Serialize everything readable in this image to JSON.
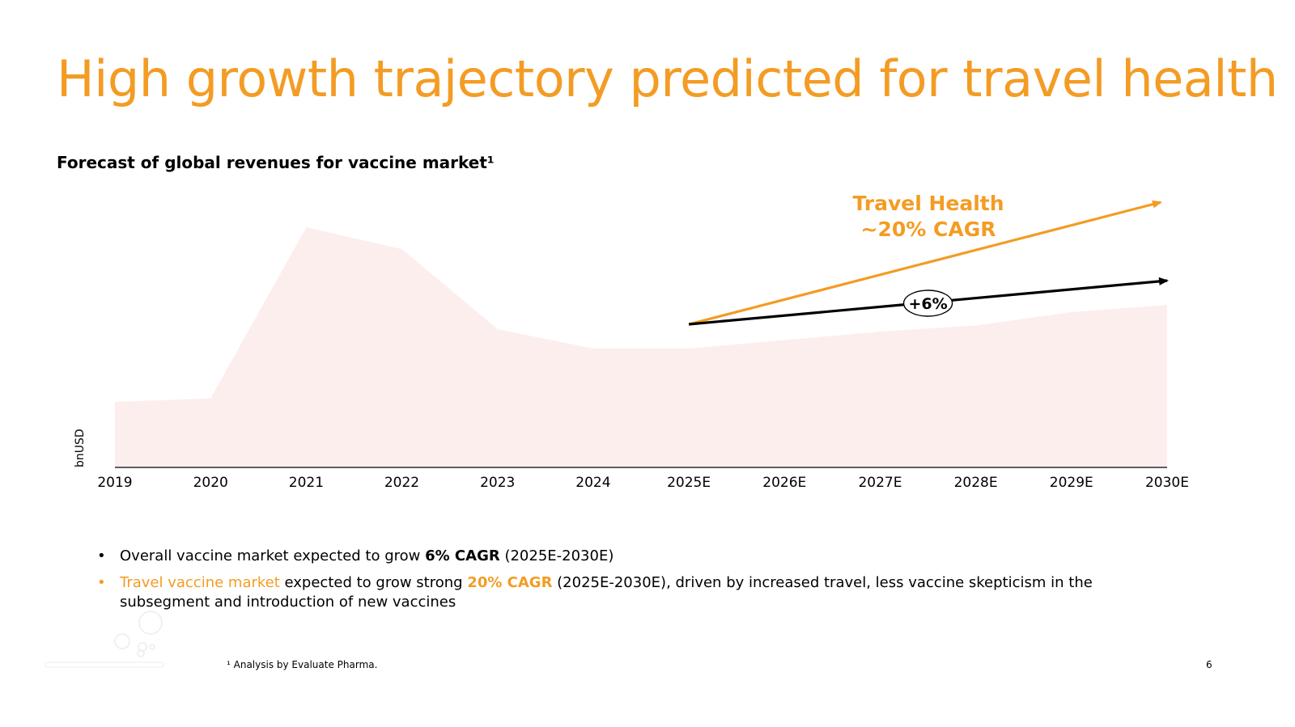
{
  "slide": {
    "title": "High growth trajectory predicted for travel health",
    "subtitle": "Forecast of global revenues for vaccine market¹",
    "page_number": "6",
    "footnote": "¹ Analysis by Evaluate Pharma."
  },
  "bullets": [
    {
      "text_1": "Overall vaccine market expected to grow ",
      "bold": "6% CAGR",
      "text_2": " (2025E-2030E)"
    },
    {
      "accent_lead": "Travel vaccine market",
      "text_1": " expected to grow strong ",
      "bold": "20% CAGR",
      "text_2": " (2025E-2030E), driven by increased travel, less vaccine skepticism in the subsegment and introduction of new vaccines"
    }
  ],
  "chart_data": {
    "type": "area",
    "title": "Forecast of global revenues for vaccine market¹",
    "xlabel": "",
    "ylabel": "bnUSD",
    "categories": [
      "2019",
      "2020",
      "2021",
      "2022",
      "2023",
      "2024",
      "2025E",
      "2026E",
      "2027E",
      "2028E",
      "2029E",
      "2030E"
    ],
    "series": [
      {
        "values": [
          27,
          28.5,
          99,
          90,
          57,
          49,
          49,
          52.5,
          56,
          58.5,
          64,
          67
        ]
      }
    ],
    "ylim": [
      0,
      110
    ],
    "grid": false,
    "legend": "none",
    "colors": {
      "area_fill": "#fdeeee",
      "axis": "#000000",
      "travel_arrow": "#f39c24",
      "market_arrow": "#000000"
    },
    "annotations": [
      {
        "kind": "arrow",
        "name": "travel-health",
        "label_lines": [
          "Travel Health",
          "~20% CAGR"
        ],
        "from": {
          "x": "2025E",
          "y": 59
        },
        "to": {
          "x": "2030E",
          "y": 110
        },
        "color": "#f39c24"
      },
      {
        "kind": "arrow",
        "name": "overall-market",
        "label": "+6%",
        "label_shape": "ellipse",
        "from": {
          "x": "2025E",
          "y": 59
        },
        "to": {
          "x": "2030E",
          "y": 77
        },
        "color": "#000000"
      }
    ]
  }
}
